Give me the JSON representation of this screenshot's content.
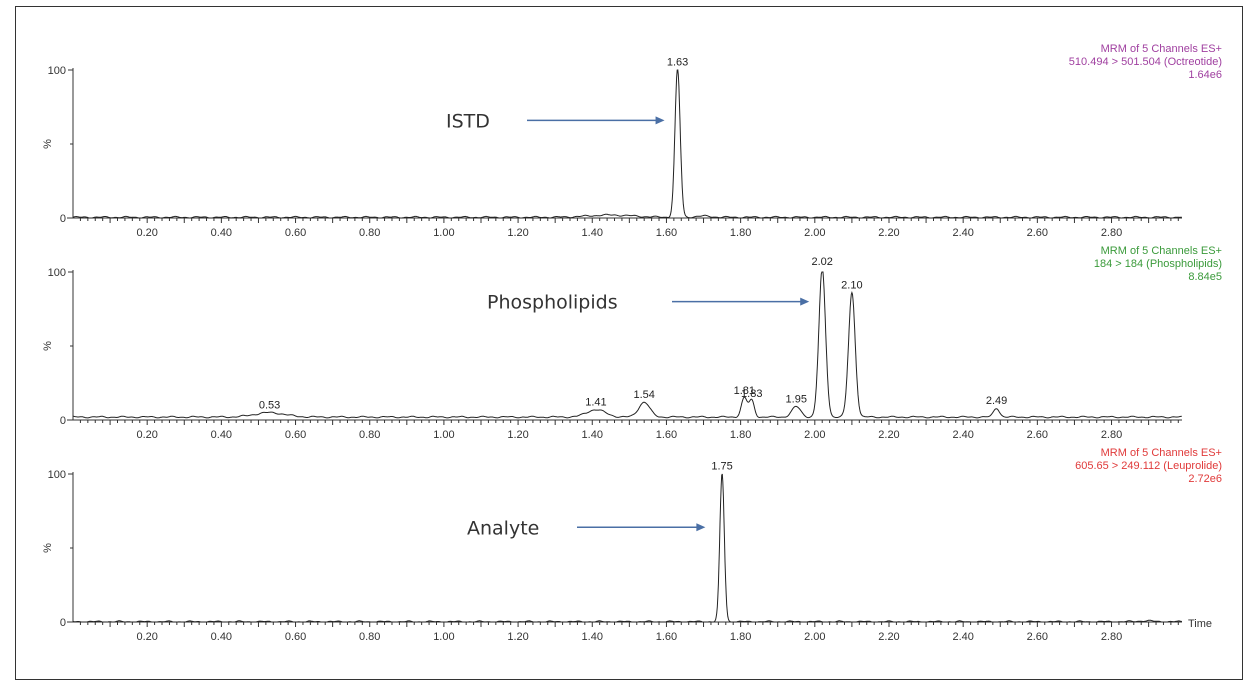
{
  "chart_data": [
    {
      "type": "line",
      "title": "",
      "info": [
        "MRM of 5 Channels ES+",
        "510.494 > 501.504 (Octreotide)",
        "1.64e6"
      ],
      "info_color": "#a040a0",
      "xlabel": "",
      "ylabel": "%",
      "xlim": [
        0.0,
        2.99
      ],
      "ylim": [
        0,
        100
      ],
      "x_ticks": [
        "0.20",
        "0.40",
        "0.60",
        "0.80",
        "1.00",
        "1.20",
        "1.40",
        "1.60",
        "1.80",
        "2.00",
        "2.20",
        "2.40",
        "2.60",
        "2.80"
      ],
      "y_ticks": [
        "0",
        "100"
      ],
      "baseline": 0.5,
      "peaks": [
        {
          "x": 1.63,
          "height": 100,
          "width": 0.007,
          "label": "1.63"
        },
        {
          "x": 1.45,
          "height": 1.5,
          "width": 0.06,
          "label": ""
        },
        {
          "x": 1.7,
          "height": 0.8,
          "width": 0.02,
          "label": ""
        }
      ],
      "annotation": {
        "text": "ISTD",
        "x": 1.63,
        "y": 66
      }
    },
    {
      "type": "line",
      "title": "",
      "info": [
        "MRM of 5 Channels ES+",
        "184 > 184 (Phospholipids)",
        "8.84e5"
      ],
      "info_color": "#3a9a3a",
      "xlabel": "",
      "ylabel": "%",
      "xlim": [
        0.0,
        2.99
      ],
      "ylim": [
        0,
        100
      ],
      "x_ticks": [
        "0.20",
        "0.40",
        "0.60",
        "0.80",
        "1.00",
        "1.20",
        "1.40",
        "1.60",
        "1.80",
        "2.00",
        "2.20",
        "2.40",
        "2.60",
        "2.80"
      ],
      "y_ticks": [
        "0",
        "100"
      ],
      "baseline": 2,
      "peaks": [
        {
          "x": 0.53,
          "height": 3,
          "width": 0.04,
          "label": "0.53"
        },
        {
          "x": 1.41,
          "height": 5,
          "width": 0.025,
          "label": "1.41"
        },
        {
          "x": 1.54,
          "height": 10,
          "width": 0.015,
          "label": "1.54"
        },
        {
          "x": 1.81,
          "height": 13,
          "width": 0.008,
          "label": "1.81"
        },
        {
          "x": 1.83,
          "height": 11,
          "width": 0.007,
          "label": "1.83"
        },
        {
          "x": 1.95,
          "height": 7,
          "width": 0.012,
          "label": "1.95"
        },
        {
          "x": 2.02,
          "height": 100,
          "width": 0.009,
          "label": "2.02"
        },
        {
          "x": 2.1,
          "height": 84,
          "width": 0.009,
          "label": "2.10"
        },
        {
          "x": 2.49,
          "height": 6,
          "width": 0.008,
          "label": "2.49"
        }
      ],
      "annotation": {
        "text": "Phospholipids",
        "x": 2.02,
        "y": 80
      }
    },
    {
      "type": "line",
      "title": "",
      "info": [
        "MRM of 5 Channels ES+",
        "605.65 > 249.112 (Leuprolide)",
        "2.72e6"
      ],
      "info_color": "#e03a3a",
      "xlabel": "Time",
      "ylabel": "%",
      "xlim": [
        0.0,
        2.99
      ],
      "ylim": [
        0,
        100
      ],
      "x_ticks": [
        "0.20",
        "0.40",
        "0.60",
        "0.80",
        "1.00",
        "1.20",
        "1.40",
        "1.60",
        "1.80",
        "2.00",
        "2.20",
        "2.40",
        "2.60",
        "2.80"
      ],
      "y_ticks": [
        "0",
        "100"
      ],
      "baseline": 0.2,
      "peaks": [
        {
          "x": 1.75,
          "height": 100,
          "width": 0.006,
          "label": "1.75"
        },
        {
          "x": 2.89,
          "height": 0.6,
          "width": 0.02,
          "label": ""
        }
      ],
      "annotation": {
        "text": "Analyte",
        "x": 1.74,
        "y": 64
      }
    }
  ]
}
